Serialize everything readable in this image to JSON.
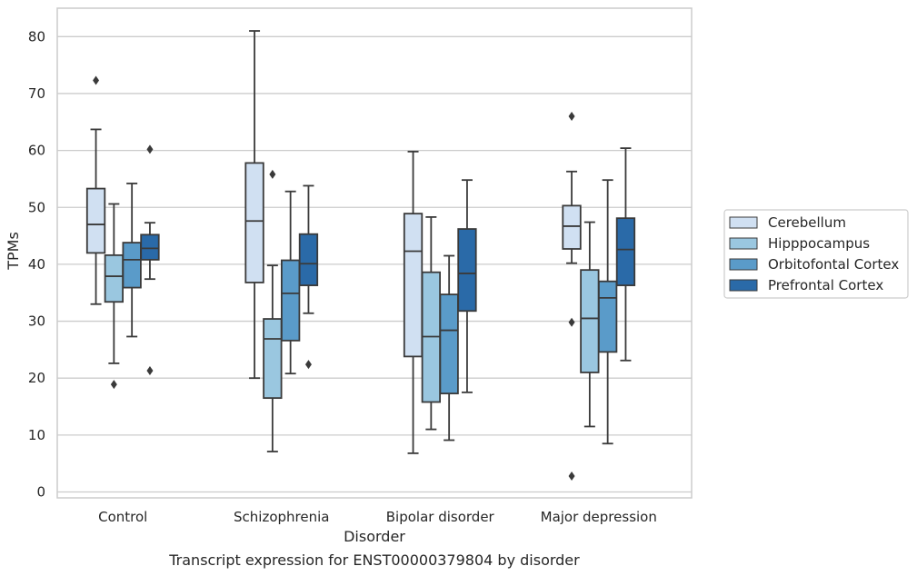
{
  "chart_data": {
    "type": "box",
    "caption": "Transcript expression for ENST00000379804 by disorder",
    "xlabel": "Disorder",
    "ylabel": "TPMs",
    "ylim": [
      -1,
      85
    ],
    "yticks": [
      0,
      10,
      20,
      30,
      40,
      50,
      60,
      70,
      80
    ],
    "grid": true,
    "legend_position": "right",
    "categories": [
      "Control",
      "Schizophrenia",
      "Bipolar disorder",
      "Major depression"
    ],
    "series": [
      {
        "name": "Cerebellum",
        "color": "#d0e0f2",
        "boxes": [
          {
            "whislo": 33,
            "q1": 42,
            "med": 47,
            "q3": 53.3,
            "whishi": 63.7,
            "fliers": [
              72.3
            ]
          },
          {
            "whislo": 20,
            "q1": 36.8,
            "med": 47.6,
            "q3": 57.8,
            "whishi": 81,
            "fliers": []
          },
          {
            "whislo": 6.8,
            "q1": 23.8,
            "med": 42.3,
            "q3": 48.9,
            "whishi": 59.8,
            "fliers": []
          },
          {
            "whislo": 40.2,
            "q1": 42.7,
            "med": 46.7,
            "q3": 50.3,
            "whishi": 56.3,
            "fliers": [
              66,
              29.8,
              2.8
            ]
          }
        ]
      },
      {
        "name": "Hipppocampus",
        "color": "#9ac7e0",
        "boxes": [
          {
            "whislo": 22.6,
            "q1": 33.4,
            "med": 37.9,
            "q3": 41.6,
            "whishi": 50.6,
            "fliers": [
              18.9
            ]
          },
          {
            "whislo": 7.1,
            "q1": 16.5,
            "med": 26.9,
            "q3": 30.4,
            "whishi": 39.8,
            "fliers": [
              55.8
            ]
          },
          {
            "whislo": 11,
            "q1": 15.8,
            "med": 27.3,
            "q3": 38.6,
            "whishi": 48.3,
            "fliers": []
          },
          {
            "whislo": 11.5,
            "q1": 21,
            "med": 30.5,
            "q3": 39,
            "whishi": 47.4,
            "fliers": []
          }
        ]
      },
      {
        "name": "Orbitofontal Cortex",
        "color": "#5a9bc9",
        "boxes": [
          {
            "whislo": 27.3,
            "q1": 35.9,
            "med": 40.8,
            "q3": 43.8,
            "whishi": 54.2,
            "fliers": []
          },
          {
            "whislo": 20.8,
            "q1": 26.6,
            "med": 34.9,
            "q3": 40.7,
            "whishi": 52.8,
            "fliers": []
          },
          {
            "whislo": 9.1,
            "q1": 17.3,
            "med": 28.4,
            "q3": 34.7,
            "whishi": 41.5,
            "fliers": []
          },
          {
            "whislo": 8.5,
            "q1": 24.6,
            "med": 34.1,
            "q3": 37,
            "whishi": 54.8,
            "fliers": []
          }
        ]
      },
      {
        "name": "Prefrontal Cortex",
        "color": "#2a6aa8",
        "boxes": [
          {
            "whislo": 37.4,
            "q1": 40.8,
            "med": 42.8,
            "q3": 45.2,
            "whishi": 47.3,
            "fliers": [
              60.2,
              21.3
            ]
          },
          {
            "whislo": 31.4,
            "q1": 36.3,
            "med": 40.1,
            "q3": 45.3,
            "whishi": 53.8,
            "fliers": [
              22.4
            ]
          },
          {
            "whislo": 17.5,
            "q1": 31.8,
            "med": 38.4,
            "q3": 46.2,
            "whishi": 54.8,
            "fliers": []
          },
          {
            "whislo": 23.1,
            "q1": 36.3,
            "med": 42.6,
            "q3": 48.1,
            "whishi": 60.4,
            "fliers": []
          }
        ]
      }
    ]
  }
}
